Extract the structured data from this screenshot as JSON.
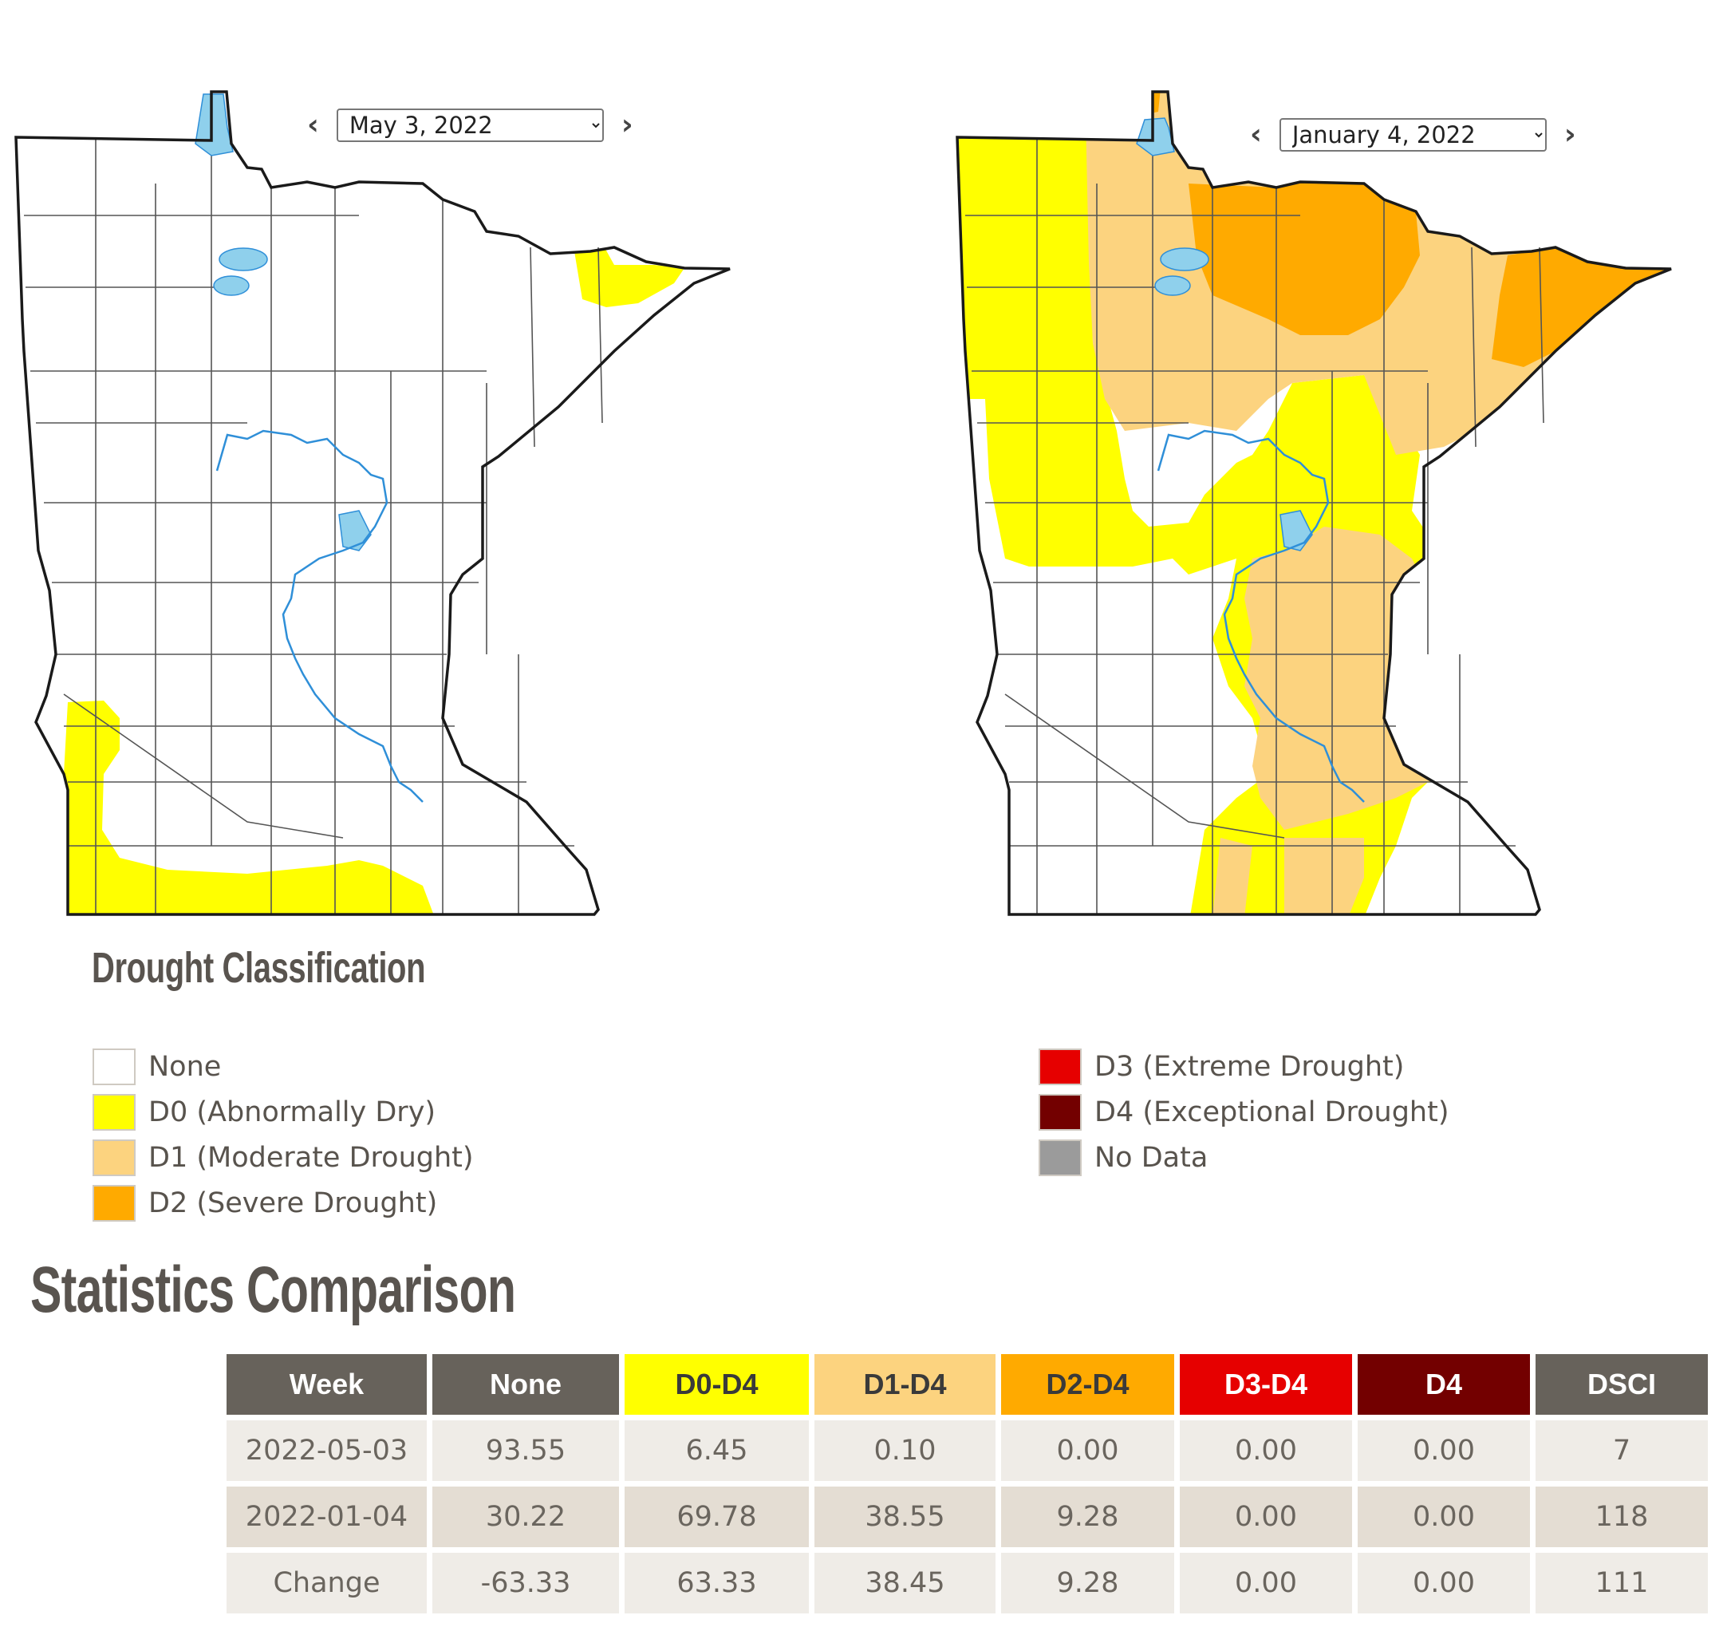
{
  "maps": [
    {
      "date_label": "May 3, 2022",
      "date_options": [
        "May 3, 2022"
      ]
    },
    {
      "date_label": "January 4, 2022",
      "date_options": [
        "January 4, 2022"
      ]
    }
  ],
  "nav": {
    "prev_icon": "chevron-left-icon",
    "next_icon": "chevron-right-icon",
    "prev_glyph": "‹",
    "next_glyph": "›"
  },
  "legend": {
    "title": "Drought Classification",
    "items": [
      {
        "label": "None",
        "color": "#ffffff"
      },
      {
        "label": "D0 (Abnormally Dry)",
        "color": "#ffff00"
      },
      {
        "label": "D1 (Moderate Drought)",
        "color": "#fcd37f"
      },
      {
        "label": "D2 (Severe Drought)",
        "color": "#ffaa00"
      },
      {
        "label": "D3 (Extreme Drought)",
        "color": "#e60000"
      },
      {
        "label": "D4 (Exceptional Drought)",
        "color": "#730000"
      },
      {
        "label": "No Data",
        "color": "#9b9b9b"
      }
    ]
  },
  "stats": {
    "title": "Statistics Comparison",
    "headers": [
      {
        "label": "Week",
        "bg": "#67625b",
        "fg": "#ffffff"
      },
      {
        "label": "None",
        "bg": "#67625b",
        "fg": "#ffffff"
      },
      {
        "label": "D0-D4",
        "bg": "#ffff00",
        "fg": "#3a3a3a"
      },
      {
        "label": "D1-D4",
        "bg": "#fcd37f",
        "fg": "#3a3a3a"
      },
      {
        "label": "D2-D4",
        "bg": "#ffaa00",
        "fg": "#3a3a3a"
      },
      {
        "label": "D3-D4",
        "bg": "#e60000",
        "fg": "#ffffff"
      },
      {
        "label": "D4",
        "bg": "#730000",
        "fg": "#ffffff"
      },
      {
        "label": "DSCI",
        "bg": "#67625b",
        "fg": "#ffffff"
      }
    ],
    "rows": [
      [
        "2022-05-03",
        "93.55",
        "6.45",
        "0.10",
        "0.00",
        "0.00",
        "0.00",
        "7"
      ],
      [
        "2022-01-04",
        "30.22",
        "69.78",
        "38.55",
        "9.28",
        "0.00",
        "0.00",
        "118"
      ],
      [
        "Change",
        "-63.33",
        "63.33",
        "38.45",
        "9.28",
        "0.00",
        "0.00",
        "111"
      ]
    ]
  },
  "colors": {
    "water": "#8fd0ec",
    "river": "#2f8fd8",
    "outline": "#1a1a1a",
    "county": "#555555"
  }
}
